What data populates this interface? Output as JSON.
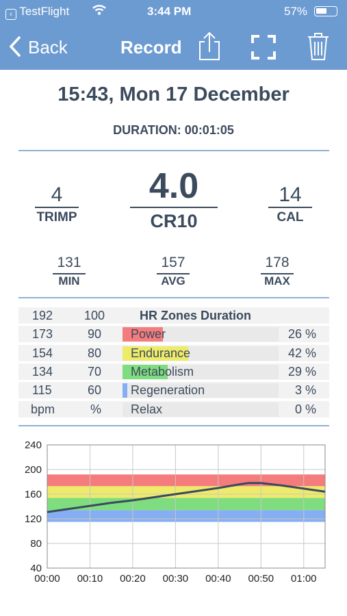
{
  "status": {
    "back_app": "TestFlight",
    "time": "3:44 PM",
    "battery": "57%",
    "battery_level": 0.57
  },
  "nav": {
    "back_label": "Back",
    "title": "Record",
    "icons": [
      "share-icon",
      "fullscreen-icon",
      "trash-icon"
    ]
  },
  "record": {
    "datetime": "15:43, Mon 17 December",
    "duration": "DURATION: 00:01:05"
  },
  "stats": {
    "trimp": {
      "value": "4",
      "label": "TRIMP"
    },
    "cr10": {
      "value": "4.0",
      "label": "CR10"
    },
    "cal": {
      "value": "14",
      "label": "CAL"
    },
    "min": {
      "value": "131",
      "label": "MIN"
    },
    "avg": {
      "value": "157",
      "label": "AVG"
    },
    "max": {
      "value": "178",
      "label": "MAX"
    }
  },
  "zones": {
    "header": {
      "bpm": "192",
      "pct": "100",
      "title": "HR Zones Duration"
    },
    "rows": [
      {
        "bpm": "173",
        "pct": "90",
        "name": "Power",
        "value": "26 %",
        "fraction": 0.26,
        "color": "#f47c7c"
      },
      {
        "bpm": "154",
        "pct": "80",
        "name": "Endurance",
        "value": "42 %",
        "fraction": 0.42,
        "color": "#eeea6a"
      },
      {
        "bpm": "134",
        "pct": "70",
        "name": "Metabolism",
        "value": "29 %",
        "fraction": 0.29,
        "color": "#7fdc7f"
      },
      {
        "bpm": "115",
        "pct": "60",
        "name": "Regeneration",
        "value": "3 %",
        "fraction": 0.03,
        "color": "#86aef2"
      },
      {
        "bpm": "bpm",
        "pct": "%",
        "name": "Relax",
        "value": "0 %",
        "fraction": 0.0,
        "color": "#d9d9d9"
      }
    ]
  },
  "chart_data": {
    "type": "line",
    "title": "",
    "xlabel": "",
    "ylabel": "",
    "ylim": [
      40,
      240
    ],
    "yticks": [
      40,
      80,
      120,
      160,
      200,
      240
    ],
    "xlim": [
      0,
      65
    ],
    "xticks": [
      0,
      10,
      20,
      30,
      40,
      50,
      60
    ],
    "xtick_labels": [
      "00:00",
      "00:10",
      "00:20",
      "00:30",
      "00:40",
      "00:50",
      "01:00"
    ],
    "grid": true,
    "bands": [
      {
        "from": 115,
        "to": 134,
        "color": "#86aef2"
      },
      {
        "from": 134,
        "to": 154,
        "color": "#7fdc7f"
      },
      {
        "from": 154,
        "to": 173,
        "color": "#eeea6a"
      },
      {
        "from": 173,
        "to": 192,
        "color": "#f47c7c"
      }
    ],
    "series": [
      {
        "color": "#3b4a5c",
        "x": [
          0,
          5,
          10,
          15,
          20,
          25,
          30,
          35,
          40,
          45,
          47,
          50,
          55,
          60,
          65
        ],
        "y": [
          131,
          136,
          141,
          146,
          150,
          155,
          160,
          165,
          170,
          176,
          178,
          178,
          174,
          169,
          164
        ]
      }
    ]
  }
}
